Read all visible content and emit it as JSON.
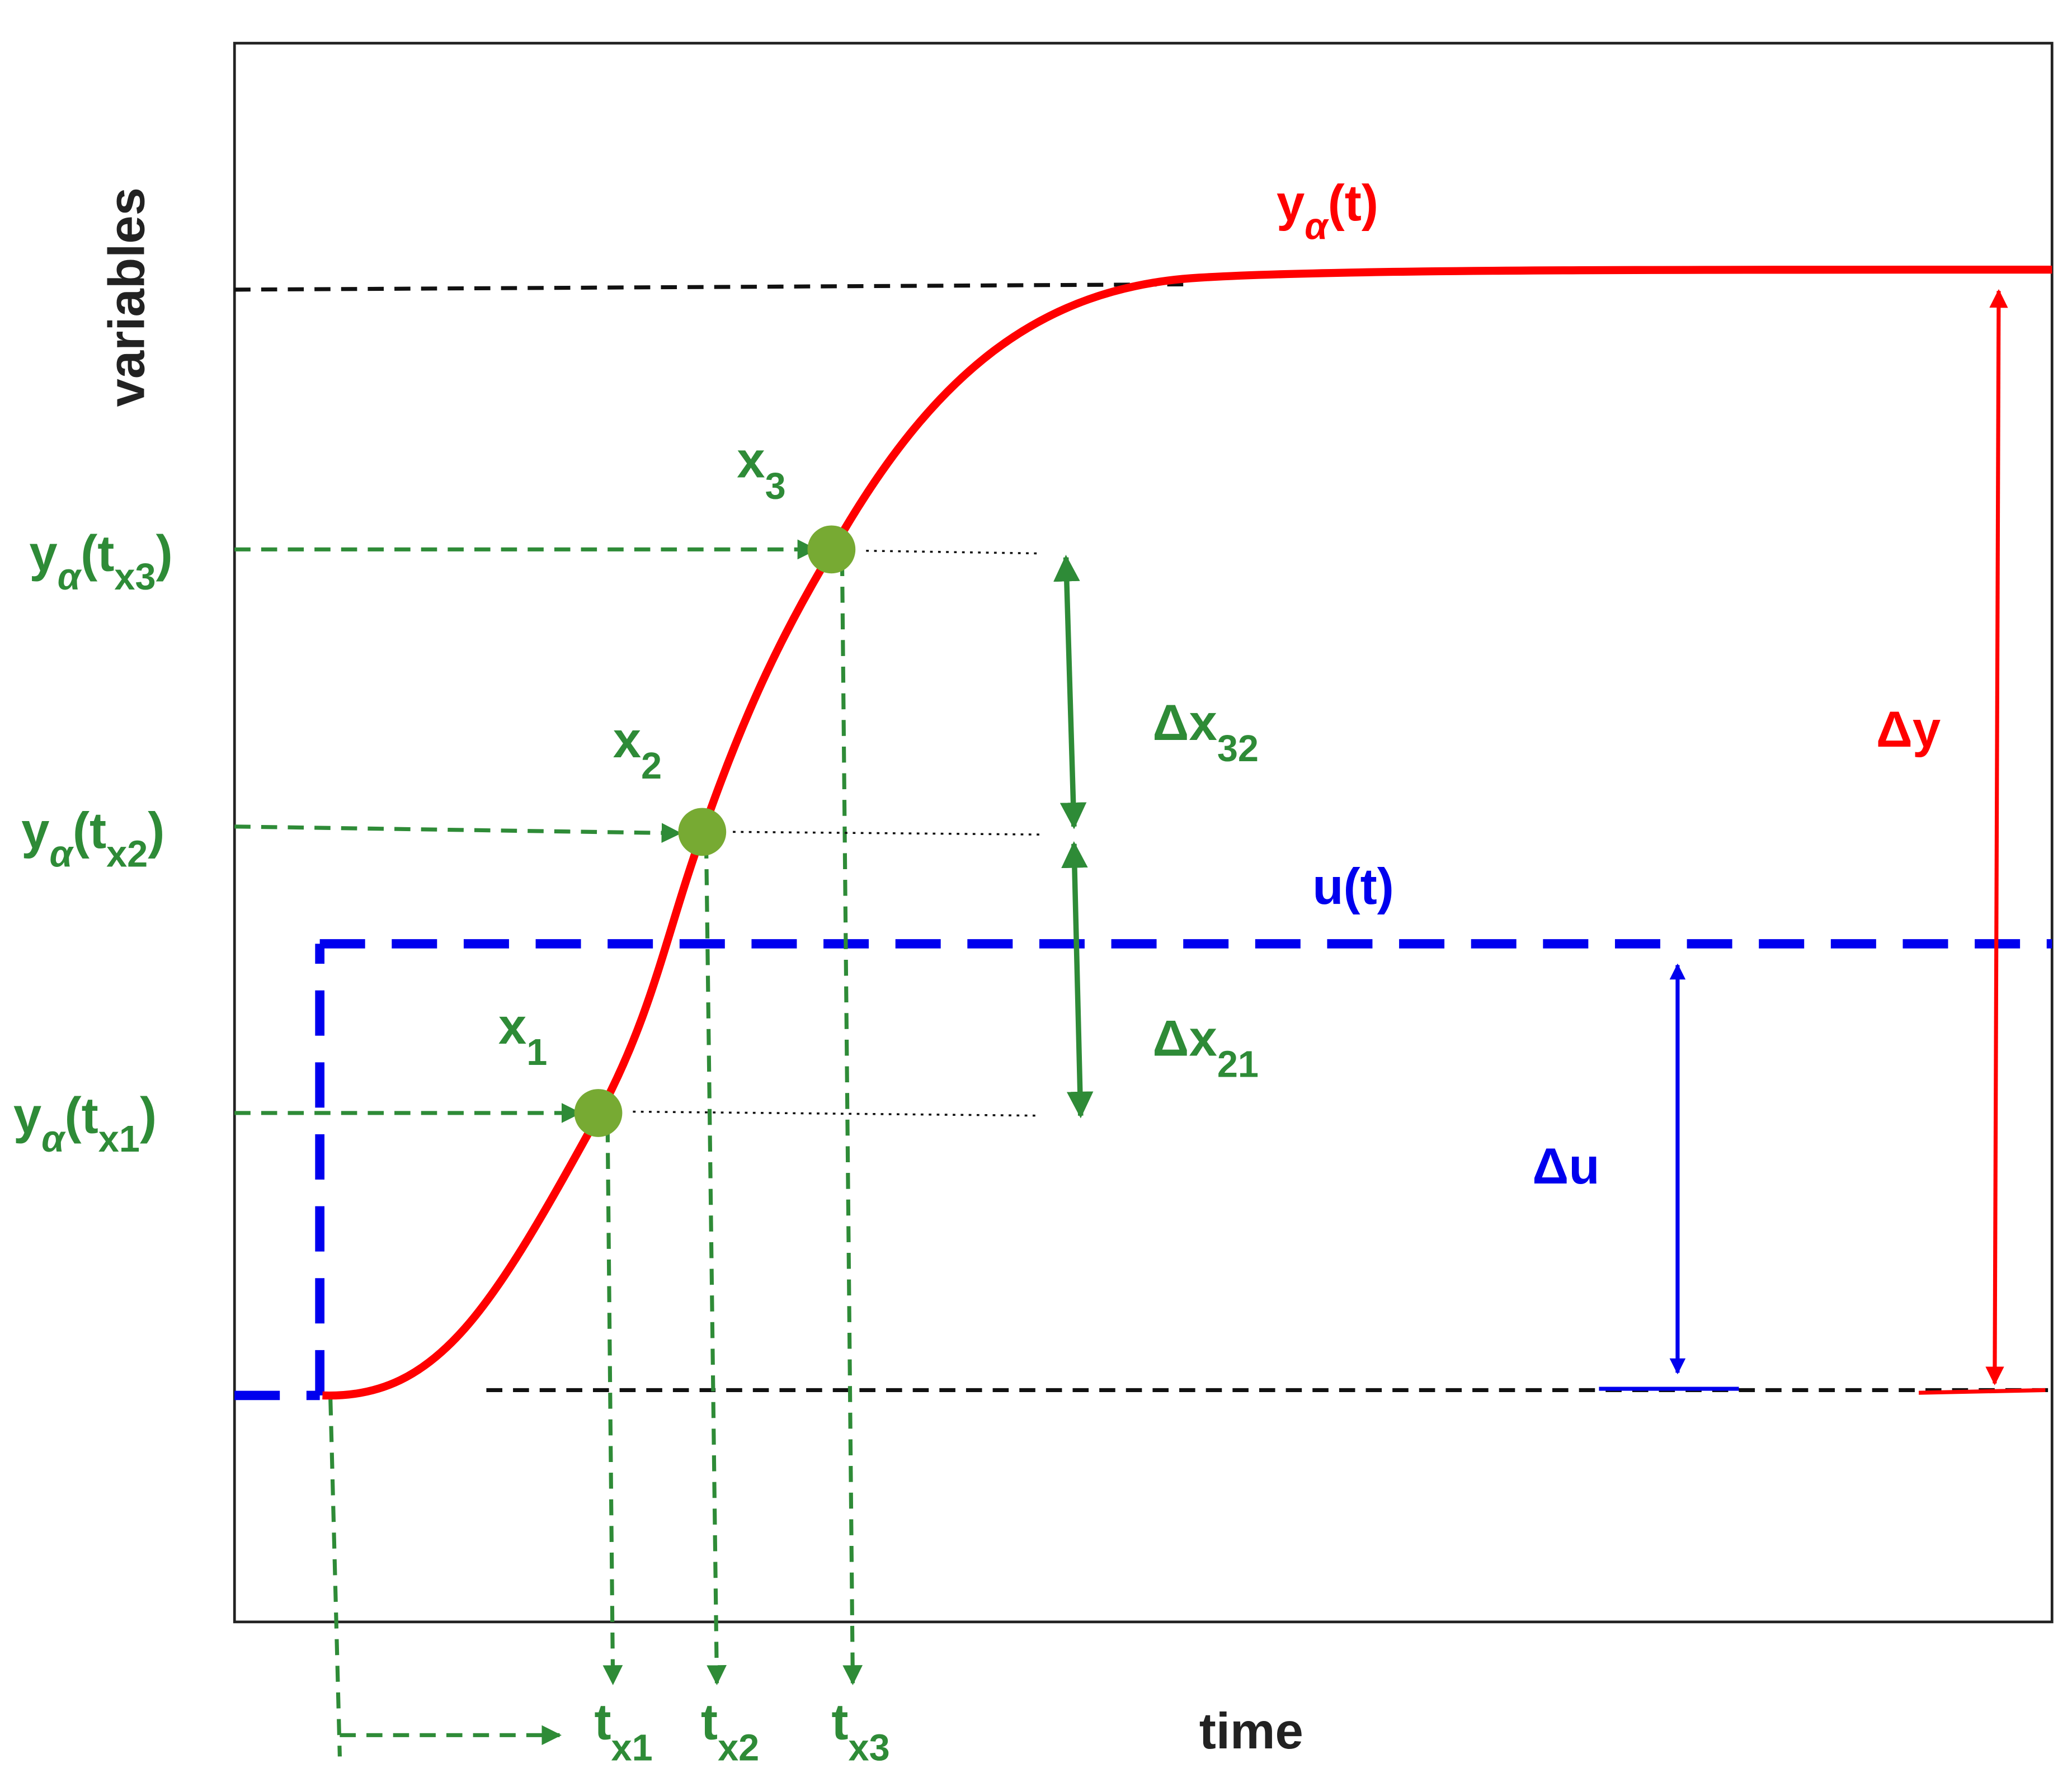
{
  "axes": {
    "y_label": "variables",
    "x_label": "time"
  },
  "curve_labels": {
    "output": [
      "y",
      "α",
      "(t)"
    ],
    "input": "u(t)"
  },
  "points": [
    {
      "name": [
        "x",
        "1"
      ],
      "level": [
        "y",
        "α",
        "(t",
        "x1",
        ")"
      ],
      "time": [
        "t",
        "x1"
      ]
    },
    {
      "name": [
        "x",
        "2"
      ],
      "level": [
        "y",
        "α",
        "(t",
        "x2",
        ")"
      ],
      "time": [
        "t",
        "x2"
      ]
    },
    {
      "name": [
        "x",
        "3"
      ],
      "level": [
        "y",
        "α",
        "(t",
        "x3",
        ")"
      ],
      "time": [
        "t",
        "x3"
      ]
    }
  ],
  "differences": {
    "dx21": [
      "Δx",
      "21"
    ],
    "dx32": [
      "Δx",
      "32"
    ],
    "du": "Δu",
    "dy": "Δy"
  }
}
